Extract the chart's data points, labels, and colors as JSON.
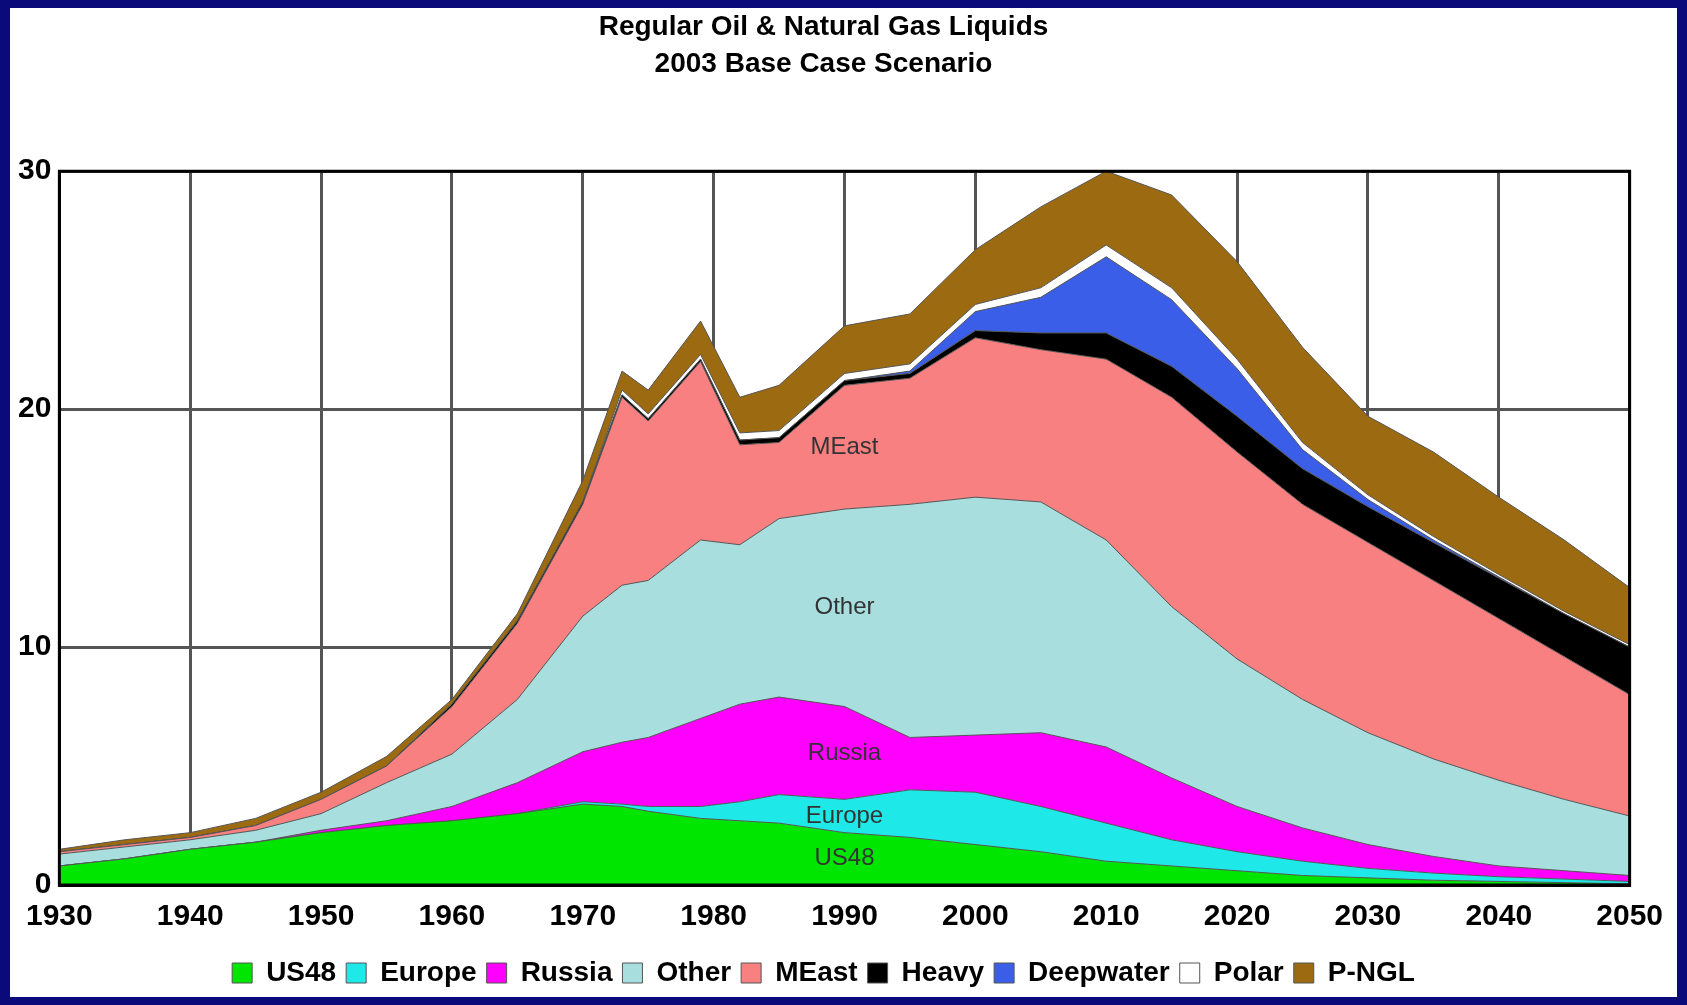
{
  "chart_data": {
    "type": "area",
    "title": "Regular Oil & Natural Gas Liquids",
    "subtitle": "2003 Base Case Scenario",
    "x": [
      1930,
      1935,
      1940,
      1945,
      1950,
      1955,
      1960,
      1965,
      1970,
      1973,
      1975,
      1979,
      1982,
      1985,
      1990,
      1995,
      2000,
      2005,
      2010,
      2015,
      2020,
      2025,
      2030,
      2035,
      2040,
      2045,
      2050
    ],
    "stacked": true,
    "xlim": [
      1930,
      2050
    ],
    "xticks": [
      1930,
      1940,
      1950,
      1960,
      1970,
      1980,
      1990,
      2000,
      2010,
      2020,
      2030,
      2040,
      2050
    ],
    "ylim": [
      0,
      30
    ],
    "yticks": [
      0,
      10,
      20,
      30
    ],
    "grid": true,
    "legend": "bottom",
    "marker": "none",
    "series": [
      {
        "name": "US48",
        "color": "#00e600",
        "values": [
          0.8,
          1.1,
          1.5,
          1.8,
          2.2,
          2.5,
          2.7,
          3.0,
          3.4,
          3.3,
          3.1,
          2.8,
          2.7,
          2.6,
          2.2,
          2.0,
          1.7,
          1.4,
          1.0,
          0.8,
          0.6,
          0.4,
          0.3,
          0.2,
          0.15,
          0.1,
          0.05
        ]
      },
      {
        "name": "Europe",
        "color": "#1ee8e8",
        "values": [
          0,
          0,
          0,
          0,
          0,
          0,
          0,
          0,
          0.1,
          0.1,
          0.2,
          0.5,
          0.8,
          1.2,
          1.4,
          2.0,
          2.2,
          1.9,
          1.6,
          1.1,
          0.8,
          0.6,
          0.4,
          0.3,
          0.2,
          0.15,
          0.1
        ]
      },
      {
        "name": "Russia",
        "color": "#ff00ff",
        "values": [
          0,
          0,
          0,
          0,
          0.1,
          0.2,
          0.6,
          1.3,
          2.1,
          2.6,
          2.9,
          3.7,
          4.1,
          4.1,
          3.9,
          2.2,
          2.4,
          3.1,
          3.2,
          2.6,
          1.9,
          1.4,
          1.0,
          0.7,
          0.45,
          0.35,
          0.25
        ]
      },
      {
        "name": "Other",
        "color": "#a8dede",
        "values": [
          0.5,
          0.5,
          0.4,
          0.5,
          0.7,
          1.6,
          2.2,
          3.5,
          5.7,
          6.6,
          6.6,
          7.5,
          6.7,
          7.5,
          8.3,
          9.8,
          10.0,
          9.7,
          8.7,
          7.2,
          6.2,
          5.4,
          4.7,
          4.1,
          3.6,
          3.0,
          2.5
        ]
      },
      {
        "name": "MEast",
        "color": "#f88080",
        "values": [
          0.1,
          0.1,
          0.1,
          0.2,
          0.6,
          0.7,
          2.0,
          3.2,
          4.7,
          7.9,
          6.7,
          7.5,
          4.2,
          3.2,
          5.2,
          5.3,
          6.7,
          6.4,
          7.6,
          8.8,
          8.7,
          8.2,
          8.0,
          7.5,
          6.8,
          6.0,
          5.1
        ]
      },
      {
        "name": "Heavy",
        "color": "#000000",
        "values": [
          0,
          0,
          0,
          0,
          0,
          0,
          0.1,
          0.1,
          0.1,
          0.1,
          0.1,
          0.1,
          0.2,
          0.2,
          0.2,
          0.2,
          0.3,
          0.7,
          1.1,
          1.3,
          1.5,
          1.5,
          1.5,
          1.6,
          1.7,
          1.8,
          2.0
        ]
      },
      {
        "name": "Deepwater",
        "color": "#3a5ee8",
        "values": [
          0,
          0,
          0,
          0,
          0,
          0,
          0,
          0,
          0,
          0,
          0,
          0,
          0,
          0,
          0,
          0.1,
          0.8,
          1.5,
          3.2,
          2.8,
          2.0,
          0.8,
          0.3,
          0.1,
          0.05,
          0,
          0
        ]
      },
      {
        "name": "Polar",
        "color": "#ffffff",
        "values": [
          0,
          0,
          0,
          0,
          0,
          0,
          0,
          0,
          0,
          0.2,
          0.2,
          0.2,
          0.3,
          0.3,
          0.3,
          0.3,
          0.3,
          0.4,
          0.5,
          0.5,
          0.4,
          0.3,
          0.2,
          0.15,
          0.1,
          0.1,
          0.1
        ]
      },
      {
        "name": "P-NGL",
        "color": "#9c6a10",
        "values": [
          0.1,
          0.2,
          0.2,
          0.3,
          0.3,
          0.4,
          0.2,
          0.3,
          0.9,
          0.8,
          1.0,
          1.4,
          1.5,
          1.9,
          2.0,
          2.1,
          2.3,
          3.4,
          3.1,
          3.9,
          4.1,
          4.0,
          3.3,
          3.55,
          3.25,
          3.0,
          2.4
        ]
      }
    ],
    "annotations": [
      "MEast",
      "Other",
      "Russia",
      "Europe",
      "US48"
    ]
  }
}
